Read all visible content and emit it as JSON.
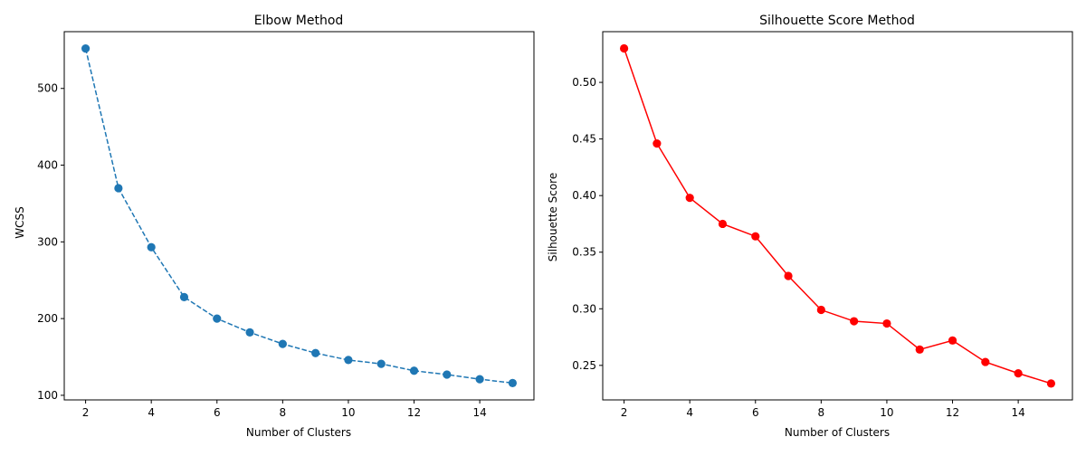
{
  "chart_data": [
    {
      "type": "line",
      "title": "Elbow Method",
      "xlabel": "Number of Clusters",
      "ylabel": "WCSS",
      "x": [
        2,
        3,
        4,
        5,
        6,
        7,
        8,
        9,
        10,
        11,
        12,
        13,
        14,
        15
      ],
      "series": [
        {
          "name": "WCSS",
          "values": [
            552,
            370,
            293,
            228,
            200,
            182,
            167,
            155,
            146,
            141,
            132,
            127,
            121,
            116
          ],
          "color": "#1f77b4",
          "linestyle": "dashed",
          "marker": "circle"
        }
      ],
      "xlim": [
        1.35,
        15.65
      ],
      "ylim": [
        94,
        574
      ],
      "xticks": [
        2,
        4,
        6,
        8,
        10,
        12,
        14
      ],
      "xtick_labels": [
        "2",
        "4",
        "6",
        "8",
        "10",
        "12",
        "14"
      ],
      "yticks": [
        100,
        200,
        300,
        400,
        500
      ],
      "ytick_labels": [
        "100",
        "200",
        "300",
        "400",
        "500"
      ],
      "grid": false
    },
    {
      "type": "line",
      "title": "Silhouette Score Method",
      "xlabel": "Number of Clusters",
      "ylabel": "Silhouette Score",
      "x": [
        2,
        3,
        4,
        5,
        6,
        7,
        8,
        9,
        10,
        11,
        12,
        13,
        14,
        15
      ],
      "series": [
        {
          "name": "Silhouette Score",
          "values": [
            0.53,
            0.446,
            0.398,
            0.375,
            0.364,
            0.329,
            0.299,
            0.289,
            0.287,
            0.264,
            0.272,
            0.253,
            0.243,
            0.234
          ],
          "color": "#ff0000",
          "linestyle": "solid",
          "marker": "circle"
        }
      ],
      "xlim": [
        1.35,
        15.65
      ],
      "ylim": [
        0.2195,
        0.5448
      ],
      "xticks": [
        2,
        4,
        6,
        8,
        10,
        12,
        14
      ],
      "xtick_labels": [
        "2",
        "4",
        "6",
        "8",
        "10",
        "12",
        "14"
      ],
      "yticks": [
        0.25,
        0.3,
        0.35,
        0.4,
        0.45,
        0.5
      ],
      "ytick_labels": [
        "0.25",
        "0.30",
        "0.35",
        "0.40",
        "0.45",
        "0.50"
      ],
      "grid": false
    }
  ]
}
